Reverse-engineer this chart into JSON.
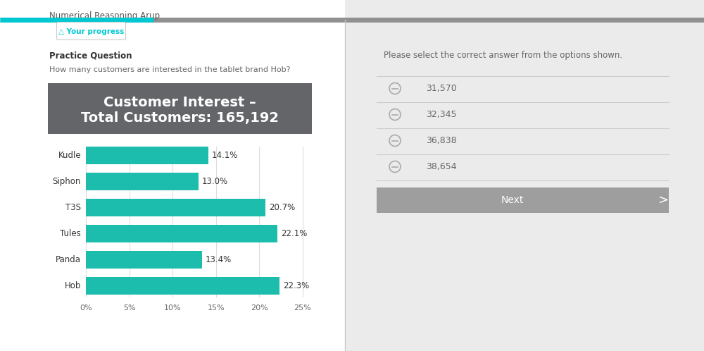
{
  "page_title": "Numerical Reasoning Arup",
  "progress_bar_bg": "#909090",
  "progress_bar_teal": "#00c8d2",
  "progress_label": "△ Your progress",
  "practice_label": "Practice Question",
  "question_text": "How many customers are interested in the tablet brand Hob?",
  "chart_title_line1": "Customer Interest –",
  "chart_title_line2": "Total Customers: 165,192",
  "chart_header_bg": "#636569",
  "chart_header_text": "#ffffff",
  "bar_color": "#1dbdad",
  "categories": [
    "Kudle",
    "Siphon",
    "T3S",
    "Tules",
    "Panda",
    "Hob"
  ],
  "values": [
    14.1,
    13.0,
    20.7,
    22.1,
    13.4,
    22.3
  ],
  "labels": [
    "14.1%",
    "13.0%",
    "20.7%",
    "22.1%",
    "13.4%",
    "22.3%"
  ],
  "xlim": [
    0,
    25
  ],
  "xticks": [
    0,
    5,
    10,
    15,
    20,
    25
  ],
  "xtick_labels": [
    "0%",
    "5%",
    "10%",
    "15%",
    "20%",
    "25%"
  ],
  "left_panel_bg": "#ffffff",
  "right_panel_bg": "#ebebeb",
  "divider_color": "#cccccc",
  "right_title": "Please select the correct answer from the options shown.",
  "options": [
    "31,570",
    "32,345",
    "36,838",
    "38,654"
  ],
  "next_btn_text": "Next",
  "next_btn_bg": "#9e9e9e",
  "next_btn_text_color": "#ffffff",
  "option_icon_color": "#aaaaaa",
  "text_dark": "#333333",
  "text_medium": "#666666",
  "text_light": "#888888",
  "teal_accent": "#00c8d2",
  "grid_color": "#dddddd",
  "panel_divider": "#c8c8c8",
  "progress_btn_border": "#cccccc",
  "page_title_color": "#555555"
}
